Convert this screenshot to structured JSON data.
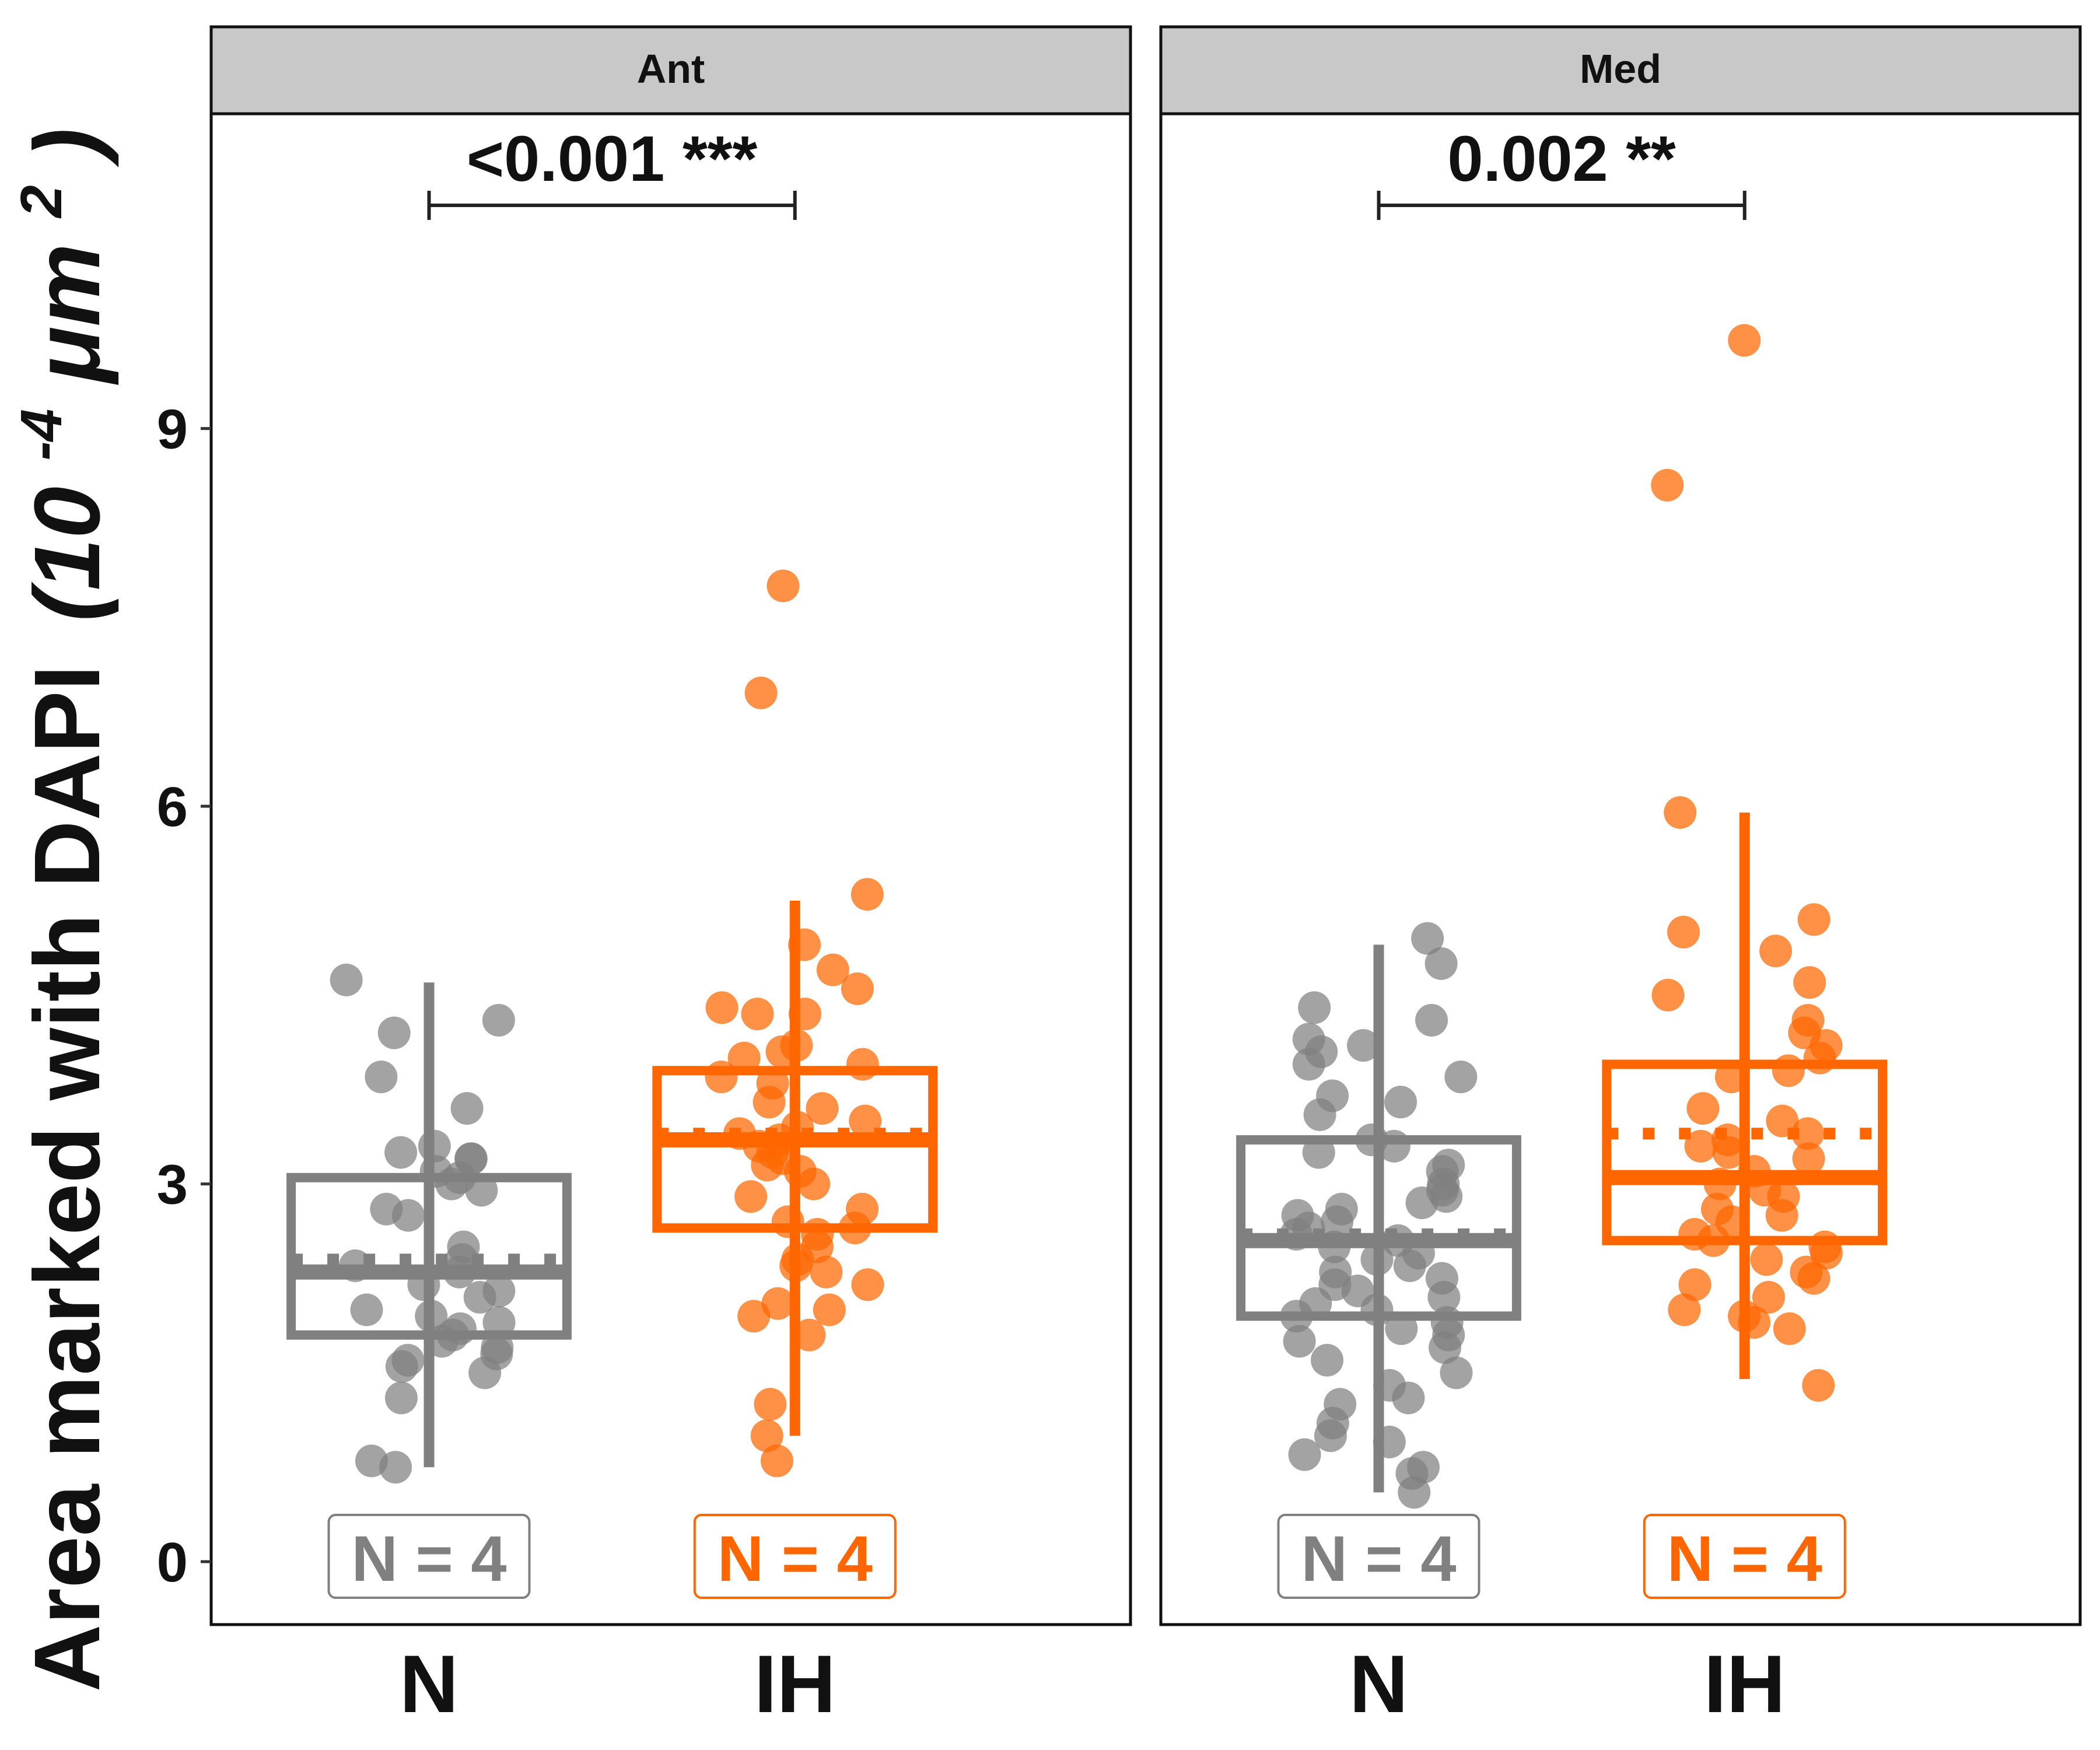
{
  "chart_data": {
    "type": "box",
    "ylabel": "Area marked with DAPI",
    "ylabel_unit_base": "(10",
    "ylabel_unit_exp": "-4",
    "ylabel_unit_mid": " μm",
    "ylabel_unit_exp2": "2",
    "ylabel_unit_close": ")",
    "ylim": [
      -0.5,
      11.5
    ],
    "yticks": [
      0,
      3,
      6,
      9
    ],
    "ytick_labels": [
      "0",
      "3",
      "6",
      "9"
    ],
    "categories": [
      "N",
      "IH"
    ],
    "colors": {
      "N": "#808080",
      "IH": "#ff6600"
    },
    "panels": [
      {
        "label": "Ant",
        "significance": "<0.001 ***",
        "groups": [
          {
            "name": "N",
            "n_label": "N = 4",
            "whisker_low": 0.75,
            "q1": 1.8,
            "median": 2.3,
            "q3": 3.05,
            "whisker_high": 4.6,
            "mean": 2.4,
            "points": [
              4.62,
              4.3,
              4.2,
              3.85,
              3.6,
              3.3,
              3.25,
              3.2,
              3.2,
              3.1,
              3.05,
              3.0,
              2.95,
              2.8,
              2.75,
              2.5,
              2.4,
              2.35,
              2.3,
              2.2,
              2.15,
              2.1,
              2.0,
              1.95,
              1.9,
              1.85,
              1.8,
              1.75,
              1.7,
              1.65,
              1.6,
              1.55,
              1.5,
              1.3,
              0.8,
              0.75
            ]
          },
          {
            "name": "IH",
            "n_label": "N = 4",
            "whisker_low": 1.0,
            "q1": 2.65,
            "median": 3.35,
            "q3": 3.9,
            "whisker_high": 5.25,
            "mean": 3.4,
            "points": [
              7.75,
              6.9,
              5.3,
              4.9,
              4.7,
              4.55,
              4.4,
              4.35,
              4.35,
              4.1,
              4.05,
              4.0,
              3.95,
              3.85,
              3.8,
              3.65,
              3.6,
              3.5,
              3.45,
              3.4,
              3.35,
              3.3,
              3.25,
              3.2,
              3.15,
              3.1,
              3.0,
              2.9,
              2.8,
              2.7,
              2.65,
              2.6,
              2.5,
              2.4,
              2.35,
              2.3,
              2.2,
              2.05,
              2.0,
              1.95,
              1.8,
              1.25,
              1.0,
              0.8
            ]
          }
        ]
      },
      {
        "label": "Med",
        "significance": "0.002 **",
        "groups": [
          {
            "name": "N",
            "n_label": "N = 4",
            "whisker_low": 0.55,
            "q1": 1.95,
            "median": 2.55,
            "q3": 3.35,
            "whisker_high": 4.9,
            "mean": 2.6,
            "points": [
              4.95,
              4.75,
              4.4,
              4.3,
              4.15,
              4.1,
              4.05,
              3.95,
              3.85,
              3.7,
              3.65,
              3.55,
              3.35,
              3.3,
              3.25,
              3.15,
              3.1,
              3.0,
              2.95,
              2.9,
              2.85,
              2.8,
              2.75,
              2.7,
              2.65,
              2.6,
              2.55,
              2.5,
              2.45,
              2.4,
              2.35,
              2.3,
              2.25,
              2.2,
              2.15,
              2.1,
              2.05,
              2.0,
              1.95,
              1.9,
              1.85,
              1.8,
              1.75,
              1.7,
              1.6,
              1.5,
              1.4,
              1.3,
              1.25,
              1.1,
              1.0,
              0.95,
              0.85,
              0.75,
              0.7,
              0.55
            ]
          },
          {
            "name": "IH",
            "n_label": "N = 4",
            "whisker_low": 1.45,
            "q1": 2.55,
            "median": 3.05,
            "q3": 3.95,
            "whisker_high": 5.95,
            "mean": 3.4,
            "points": [
              9.7,
              8.55,
              5.95,
              5.1,
              5.0,
              4.85,
              4.6,
              4.5,
              4.3,
              4.2,
              4.1,
              4.0,
              3.9,
              3.85,
              3.6,
              3.5,
              3.4,
              3.35,
              3.3,
              3.25,
              3.2,
              3.1,
              3.0,
              2.95,
              2.9,
              2.8,
              2.75,
              2.7,
              2.6,
              2.55,
              2.5,
              2.45,
              2.4,
              2.3,
              2.25,
              2.2,
              2.1,
              2.0,
              1.95,
              1.9,
              1.85,
              1.4
            ]
          }
        ]
      }
    ]
  }
}
